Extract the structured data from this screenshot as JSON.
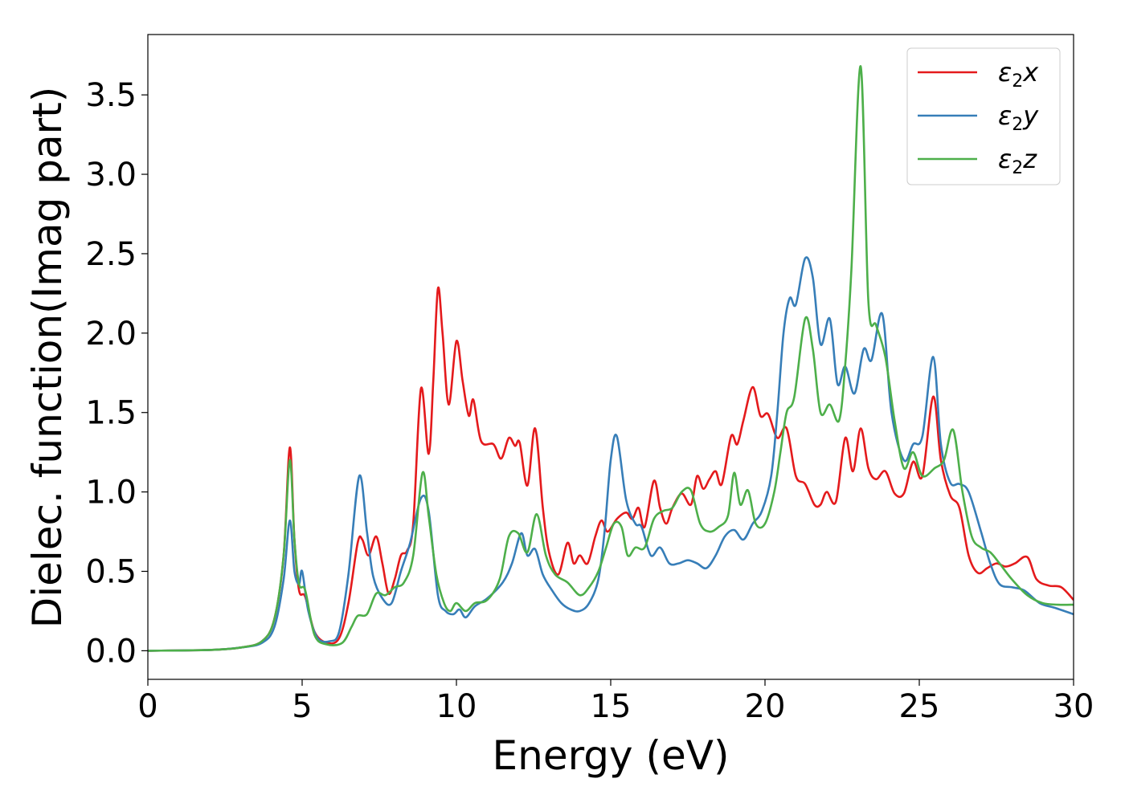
{
  "chart_data": {
    "type": "line",
    "xlabel": "Energy (eV)",
    "ylabel": "Dielec. function(Imag part)",
    "xlim": [
      0,
      30
    ],
    "ylim": [
      -0.18,
      3.88
    ],
    "xticks": [
      0,
      5,
      10,
      15,
      20,
      25,
      30
    ],
    "xtick_labels": [
      "0",
      "5",
      "10",
      "15",
      "20",
      "25",
      "30"
    ],
    "yticks": [
      0.0,
      0.5,
      1.0,
      1.5,
      2.0,
      2.5,
      3.0,
      3.5
    ],
    "ytick_labels": [
      "0.0",
      "0.5",
      "1.0",
      "1.5",
      "2.0",
      "2.5",
      "3.0",
      "3.5"
    ],
    "grid": false,
    "legend_position": "top-right",
    "series": [
      {
        "name": "ε2x",
        "legend": {
          "main": "ε",
          "sub": "2",
          "tail": "x"
        },
        "color": "#e41a1c",
        "points": [
          [
            0,
            0
          ],
          [
            2,
            0.005
          ],
          [
            3,
            0.02
          ],
          [
            3.7,
            0.06
          ],
          [
            4.1,
            0.2
          ],
          [
            4.4,
            0.6
          ],
          [
            4.6,
            1.28
          ],
          [
            4.75,
            0.7
          ],
          [
            4.9,
            0.38
          ],
          [
            5.1,
            0.34
          ],
          [
            5.4,
            0.12
          ],
          [
            5.8,
            0.05
          ],
          [
            6.2,
            0.08
          ],
          [
            6.5,
            0.3
          ],
          [
            6.8,
            0.68
          ],
          [
            6.95,
            0.7
          ],
          [
            7.15,
            0.6
          ],
          [
            7.4,
            0.72
          ],
          [
            7.6,
            0.55
          ],
          [
            7.8,
            0.36
          ],
          [
            8.0,
            0.45
          ],
          [
            8.2,
            0.6
          ],
          [
            8.4,
            0.63
          ],
          [
            8.6,
            0.8
          ],
          [
            8.85,
            1.65
          ],
          [
            9.1,
            1.24
          ],
          [
            9.25,
            1.7
          ],
          [
            9.4,
            2.28
          ],
          [
            9.55,
            2.0
          ],
          [
            9.75,
            1.55
          ],
          [
            10.0,
            1.95
          ],
          [
            10.2,
            1.7
          ],
          [
            10.4,
            1.48
          ],
          [
            10.55,
            1.58
          ],
          [
            10.8,
            1.32
          ],
          [
            11.2,
            1.3
          ],
          [
            11.45,
            1.21
          ],
          [
            11.7,
            1.34
          ],
          [
            11.9,
            1.29
          ],
          [
            12.05,
            1.31
          ],
          [
            12.3,
            1.04
          ],
          [
            12.55,
            1.4
          ],
          [
            12.8,
            0.9
          ],
          [
            13.0,
            0.62
          ],
          [
            13.3,
            0.48
          ],
          [
            13.6,
            0.68
          ],
          [
            13.8,
            0.55
          ],
          [
            14.0,
            0.6
          ],
          [
            14.25,
            0.55
          ],
          [
            14.5,
            0.72
          ],
          [
            14.7,
            0.82
          ],
          [
            14.9,
            0.75
          ],
          [
            15.2,
            0.83
          ],
          [
            15.5,
            0.87
          ],
          [
            15.7,
            0.83
          ],
          [
            15.9,
            0.9
          ],
          [
            16.1,
            0.78
          ],
          [
            16.4,
            1.07
          ],
          [
            16.6,
            0.9
          ],
          [
            16.8,
            0.8
          ],
          [
            17.0,
            0.9
          ],
          [
            17.3,
            0.99
          ],
          [
            17.6,
            0.92
          ],
          [
            17.8,
            1.1
          ],
          [
            18.0,
            1.02
          ],
          [
            18.2,
            1.08
          ],
          [
            18.4,
            1.13
          ],
          [
            18.6,
            1.05
          ],
          [
            18.9,
            1.35
          ],
          [
            19.1,
            1.3
          ],
          [
            19.3,
            1.45
          ],
          [
            19.6,
            1.66
          ],
          [
            19.85,
            1.48
          ],
          [
            20.1,
            1.49
          ],
          [
            20.4,
            1.34
          ],
          [
            20.7,
            1.4
          ],
          [
            21.0,
            1.1
          ],
          [
            21.3,
            1.05
          ],
          [
            21.6,
            0.92
          ],
          [
            21.8,
            0.92
          ],
          [
            22.0,
            1.0
          ],
          [
            22.3,
            0.94
          ],
          [
            22.6,
            1.34
          ],
          [
            22.85,
            1.13
          ],
          [
            23.1,
            1.4
          ],
          [
            23.35,
            1.15
          ],
          [
            23.6,
            1.08
          ],
          [
            23.9,
            1.13
          ],
          [
            24.2,
            0.99
          ],
          [
            24.5,
            0.99
          ],
          [
            24.8,
            1.19
          ],
          [
            25.1,
            1.1
          ],
          [
            25.45,
            1.6
          ],
          [
            25.7,
            1.2
          ],
          [
            26.0,
            0.98
          ],
          [
            26.3,
            0.9
          ],
          [
            26.6,
            0.6
          ],
          [
            26.9,
            0.49
          ],
          [
            27.2,
            0.52
          ],
          [
            27.5,
            0.55
          ],
          [
            27.8,
            0.53
          ],
          [
            28.1,
            0.55
          ],
          [
            28.5,
            0.59
          ],
          [
            28.8,
            0.45
          ],
          [
            29.2,
            0.41
          ],
          [
            29.6,
            0.4
          ],
          [
            30.0,
            0.32
          ]
        ]
      },
      {
        "name": "ε2y",
        "legend": {
          "main": "ε",
          "sub": "2",
          "tail": "y"
        },
        "color": "#377eb8",
        "points": [
          [
            0,
            0
          ],
          [
            2,
            0.005
          ],
          [
            3,
            0.02
          ],
          [
            3.7,
            0.05
          ],
          [
            4.1,
            0.15
          ],
          [
            4.4,
            0.45
          ],
          [
            4.6,
            0.82
          ],
          [
            4.75,
            0.5
          ],
          [
            4.9,
            0.42
          ],
          [
            5.0,
            0.5
          ],
          [
            5.2,
            0.25
          ],
          [
            5.5,
            0.08
          ],
          [
            5.9,
            0.06
          ],
          [
            6.2,
            0.12
          ],
          [
            6.5,
            0.48
          ],
          [
            6.85,
            1.1
          ],
          [
            7.1,
            0.75
          ],
          [
            7.3,
            0.47
          ],
          [
            7.6,
            0.33
          ],
          [
            7.9,
            0.3
          ],
          [
            8.2,
            0.5
          ],
          [
            8.5,
            0.68
          ],
          [
            8.85,
            0.96
          ],
          [
            9.1,
            0.88
          ],
          [
            9.4,
            0.35
          ],
          [
            9.65,
            0.25
          ],
          [
            9.9,
            0.23
          ],
          [
            10.1,
            0.26
          ],
          [
            10.3,
            0.21
          ],
          [
            10.6,
            0.28
          ],
          [
            11.0,
            0.33
          ],
          [
            11.5,
            0.43
          ],
          [
            11.8,
            0.55
          ],
          [
            12.1,
            0.74
          ],
          [
            12.3,
            0.6
          ],
          [
            12.55,
            0.64
          ],
          [
            12.8,
            0.48
          ],
          [
            13.1,
            0.38
          ],
          [
            13.4,
            0.3
          ],
          [
            13.7,
            0.26
          ],
          [
            14.0,
            0.25
          ],
          [
            14.3,
            0.3
          ],
          [
            14.6,
            0.45
          ],
          [
            14.8,
            0.75
          ],
          [
            15.0,
            1.2
          ],
          [
            15.2,
            1.35
          ],
          [
            15.5,
            0.95
          ],
          [
            15.8,
            0.8
          ],
          [
            16.0,
            0.78
          ],
          [
            16.3,
            0.6
          ],
          [
            16.6,
            0.65
          ],
          [
            16.9,
            0.55
          ],
          [
            17.2,
            0.55
          ],
          [
            17.5,
            0.57
          ],
          [
            17.8,
            0.55
          ],
          [
            18.1,
            0.52
          ],
          [
            18.4,
            0.6
          ],
          [
            18.7,
            0.72
          ],
          [
            19.0,
            0.76
          ],
          [
            19.3,
            0.7
          ],
          [
            19.6,
            0.8
          ],
          [
            19.9,
            0.88
          ],
          [
            20.2,
            1.1
          ],
          [
            20.4,
            1.5
          ],
          [
            20.6,
            2.0
          ],
          [
            20.8,
            2.22
          ],
          [
            21.0,
            2.18
          ],
          [
            21.3,
            2.47
          ],
          [
            21.55,
            2.35
          ],
          [
            21.8,
            1.93
          ],
          [
            22.1,
            2.09
          ],
          [
            22.35,
            1.68
          ],
          [
            22.6,
            1.79
          ],
          [
            22.9,
            1.62
          ],
          [
            23.2,
            1.9
          ],
          [
            23.45,
            1.83
          ],
          [
            23.8,
            2.12
          ],
          [
            24.1,
            1.5
          ],
          [
            24.5,
            1.2
          ],
          [
            24.8,
            1.3
          ],
          [
            25.1,
            1.35
          ],
          [
            25.45,
            1.85
          ],
          [
            25.7,
            1.3
          ],
          [
            26.0,
            1.06
          ],
          [
            26.3,
            1.05
          ],
          [
            26.6,
            1.0
          ],
          [
            27.0,
            0.75
          ],
          [
            27.3,
            0.55
          ],
          [
            27.6,
            0.42
          ],
          [
            28.0,
            0.4
          ],
          [
            28.4,
            0.38
          ],
          [
            28.9,
            0.3
          ],
          [
            29.4,
            0.27
          ],
          [
            30.0,
            0.23
          ]
        ]
      },
      {
        "name": "ε2z",
        "legend": {
          "main": "ε",
          "sub": "2",
          "tail": "z"
        },
        "color": "#4daf4a",
        "points": [
          [
            0,
            0
          ],
          [
            2,
            0.005
          ],
          [
            3,
            0.02
          ],
          [
            3.7,
            0.06
          ],
          [
            4.1,
            0.2
          ],
          [
            4.4,
            0.6
          ],
          [
            4.6,
            1.2
          ],
          [
            4.75,
            0.7
          ],
          [
            4.9,
            0.42
          ],
          [
            5.1,
            0.38
          ],
          [
            5.4,
            0.1
          ],
          [
            5.8,
            0.04
          ],
          [
            6.3,
            0.05
          ],
          [
            6.6,
            0.15
          ],
          [
            6.8,
            0.22
          ],
          [
            7.1,
            0.23
          ],
          [
            7.4,
            0.36
          ],
          [
            7.7,
            0.35
          ],
          [
            8.0,
            0.4
          ],
          [
            8.3,
            0.43
          ],
          [
            8.6,
            0.6
          ],
          [
            8.9,
            1.12
          ],
          [
            9.1,
            0.85
          ],
          [
            9.35,
            0.48
          ],
          [
            9.6,
            0.3
          ],
          [
            9.8,
            0.25
          ],
          [
            10.0,
            0.3
          ],
          [
            10.3,
            0.25
          ],
          [
            10.6,
            0.3
          ],
          [
            11.0,
            0.32
          ],
          [
            11.4,
            0.45
          ],
          [
            11.7,
            0.72
          ],
          [
            12.0,
            0.74
          ],
          [
            12.3,
            0.62
          ],
          [
            12.6,
            0.86
          ],
          [
            12.9,
            0.6
          ],
          [
            13.2,
            0.48
          ],
          [
            13.6,
            0.43
          ],
          [
            14.0,
            0.35
          ],
          [
            14.3,
            0.4
          ],
          [
            14.6,
            0.5
          ],
          [
            14.85,
            0.65
          ],
          [
            15.1,
            0.8
          ],
          [
            15.35,
            0.78
          ],
          [
            15.55,
            0.6
          ],
          [
            15.8,
            0.65
          ],
          [
            16.1,
            0.65
          ],
          [
            16.4,
            0.83
          ],
          [
            16.7,
            0.88
          ],
          [
            17.0,
            0.9
          ],
          [
            17.3,
            1.0
          ],
          [
            17.6,
            1.01
          ],
          [
            17.9,
            0.8
          ],
          [
            18.2,
            0.75
          ],
          [
            18.5,
            0.78
          ],
          [
            18.8,
            0.85
          ],
          [
            19.0,
            1.12
          ],
          [
            19.2,
            0.92
          ],
          [
            19.45,
            1.01
          ],
          [
            19.7,
            0.8
          ],
          [
            20.0,
            0.8
          ],
          [
            20.3,
            1.0
          ],
          [
            20.5,
            1.25
          ],
          [
            20.7,
            1.5
          ],
          [
            20.95,
            1.6
          ],
          [
            21.3,
            2.09
          ],
          [
            21.55,
            1.9
          ],
          [
            21.8,
            1.5
          ],
          [
            22.1,
            1.55
          ],
          [
            22.4,
            1.45
          ],
          [
            22.6,
            1.8
          ],
          [
            22.8,
            2.4
          ],
          [
            23.1,
            3.68
          ],
          [
            23.35,
            2.2
          ],
          [
            23.6,
            2.05
          ],
          [
            23.9,
            1.85
          ],
          [
            24.2,
            1.45
          ],
          [
            24.5,
            1.15
          ],
          [
            24.8,
            1.25
          ],
          [
            25.1,
            1.1
          ],
          [
            25.5,
            1.15
          ],
          [
            25.8,
            1.2
          ],
          [
            26.1,
            1.39
          ],
          [
            26.4,
            1.0
          ],
          [
            26.7,
            0.72
          ],
          [
            27.0,
            0.65
          ],
          [
            27.3,
            0.62
          ],
          [
            27.6,
            0.55
          ],
          [
            28.0,
            0.45
          ],
          [
            28.5,
            0.35
          ],
          [
            29.0,
            0.3
          ],
          [
            29.5,
            0.29
          ],
          [
            30.0,
            0.29
          ]
        ]
      }
    ]
  }
}
